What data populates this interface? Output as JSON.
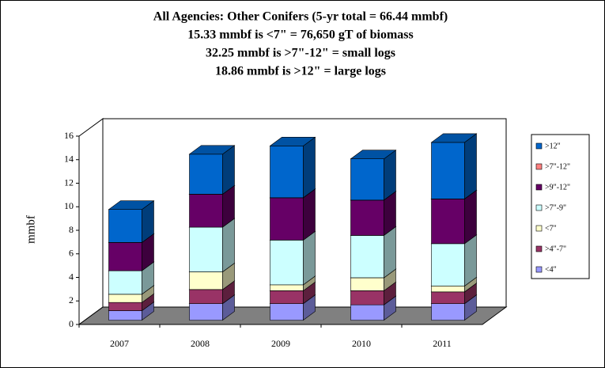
{
  "chart_data": {
    "type": "bar3d_stacked",
    "title": [
      "All Agencies: Other Conifers (5-yr total = 66.44 mmbf)",
      "15.33 mmbf is <7\" = 76,650 gT of biomass",
      "32.25 mmbf is >7\"-12\" = small logs",
      "18.86 mmbf is >12\" = large logs"
    ],
    "ylabel": "mmbf",
    "categories": [
      "2007",
      "2008",
      "2009",
      "2010",
      "2011"
    ],
    "series": [
      {
        "name": "<4\"",
        "color": "#9999ff",
        "values": [
          0.8,
          1.4,
          1.4,
          1.3,
          1.4
        ]
      },
      {
        "name": ">4\"-7\"",
        "color": "#993366",
        "values": [
          0.7,
          1.2,
          1.1,
          1.2,
          1.0
        ]
      },
      {
        "name": "<7\"",
        "color": "#ffffcc",
        "values": [
          0.7,
          1.5,
          0.5,
          1.1,
          0.5
        ]
      },
      {
        "name": ">7\"-9\"",
        "color": "#ccffff",
        "values": [
          2.0,
          3.8,
          3.8,
          3.6,
          3.6
        ]
      },
      {
        "name": ">9\"-12\"",
        "color": "#660066",
        "values": [
          2.4,
          2.8,
          3.6,
          3.0,
          3.8
        ]
      },
      {
        "name": ">7\"-12\"",
        "color": "#ff8080",
        "values": [
          0,
          0,
          0,
          0,
          0
        ]
      },
      {
        "name": ">12\"",
        "color": "#0066cc",
        "values": [
          2.8,
          3.4,
          4.4,
          3.5,
          4.8
        ]
      }
    ],
    "ylim": [
      0,
      16
    ],
    "yticks": [
      0,
      2,
      4,
      6,
      8,
      10,
      12,
      14,
      16
    ],
    "legend": "right"
  }
}
